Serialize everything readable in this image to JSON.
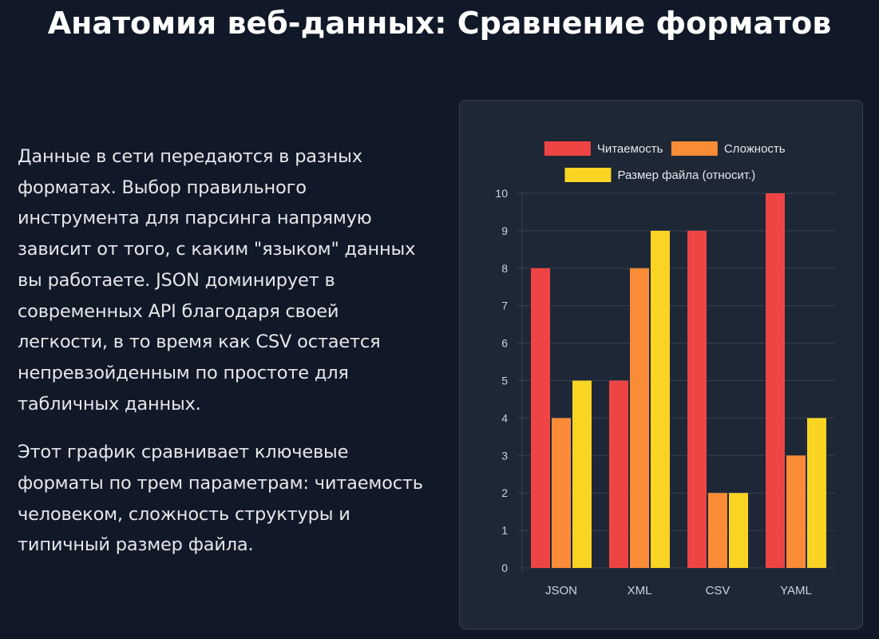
{
  "page": {
    "title": "Анатомия веб-данных: Сравнение форматов",
    "paragraphs": [
      "Данные в сети передаются в разных форматах. Выбор правильного инструмента для парсинга напрямую зависит от того, с каким \"языком\" данных вы работаете. JSON доминирует в современных API благодаря своей легкости, в то время как CSV остается непревзойденным по простоте для табличных данных.",
      "Этот график сравнивает ключевые форматы по трем параметрам: читаемость человеком, сложность структуры и типичный размер файла."
    ]
  },
  "chart_data": {
    "type": "bar",
    "title": "",
    "xlabel": "",
    "ylabel": "",
    "categories": [
      "JSON",
      "XML",
      "CSV",
      "YAML"
    ],
    "series": [
      {
        "name": "Читаемость",
        "values": [
          8,
          5,
          9,
          10
        ],
        "color": "#ef4444"
      },
      {
        "name": "Сложность",
        "values": [
          4,
          8,
          2,
          3
        ],
        "color": "#fb8c37"
      },
      {
        "name": "Размер файла (относит.)",
        "values": [
          5,
          9,
          2,
          4
        ],
        "color": "#f9d423"
      }
    ],
    "ylim": [
      0,
      10
    ],
    "yticks": [
      0,
      1,
      2,
      3,
      4,
      5,
      6,
      7,
      8,
      9,
      10
    ],
    "grid": true,
    "legend": "top"
  }
}
